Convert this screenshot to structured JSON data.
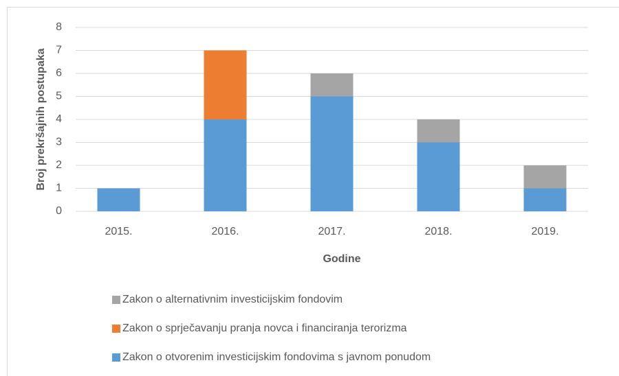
{
  "chart_data": {
    "type": "bar",
    "stacked": true,
    "categories": [
      "2015.",
      "2016.",
      "2017.",
      "2018.",
      "2019."
    ],
    "series": [
      {
        "name": "Zakon o otvorenim investicijskim fondovima s javnom ponudom",
        "color": "#5b9bd5",
        "values": [
          1,
          4,
          5,
          3,
          1
        ]
      },
      {
        "name": "Zakon o sprječavanju pranja novca i financiranja terorizma",
        "color": "#ed7d31",
        "values": [
          0,
          3,
          0,
          0,
          0
        ]
      },
      {
        "name": "Zakon o alternativnim investicijskim fondovim",
        "color": "#a5a5a5",
        "values": [
          0,
          0,
          1,
          1,
          1
        ]
      }
    ],
    "xlabel": "Godine",
    "ylabel": "Broj prekršajnih postupaka",
    "ylim": [
      0,
      8
    ],
    "yticks": [
      0,
      1,
      2,
      3,
      4,
      5,
      6,
      7,
      8
    ],
    "grid": true,
    "legend": "bottom"
  }
}
